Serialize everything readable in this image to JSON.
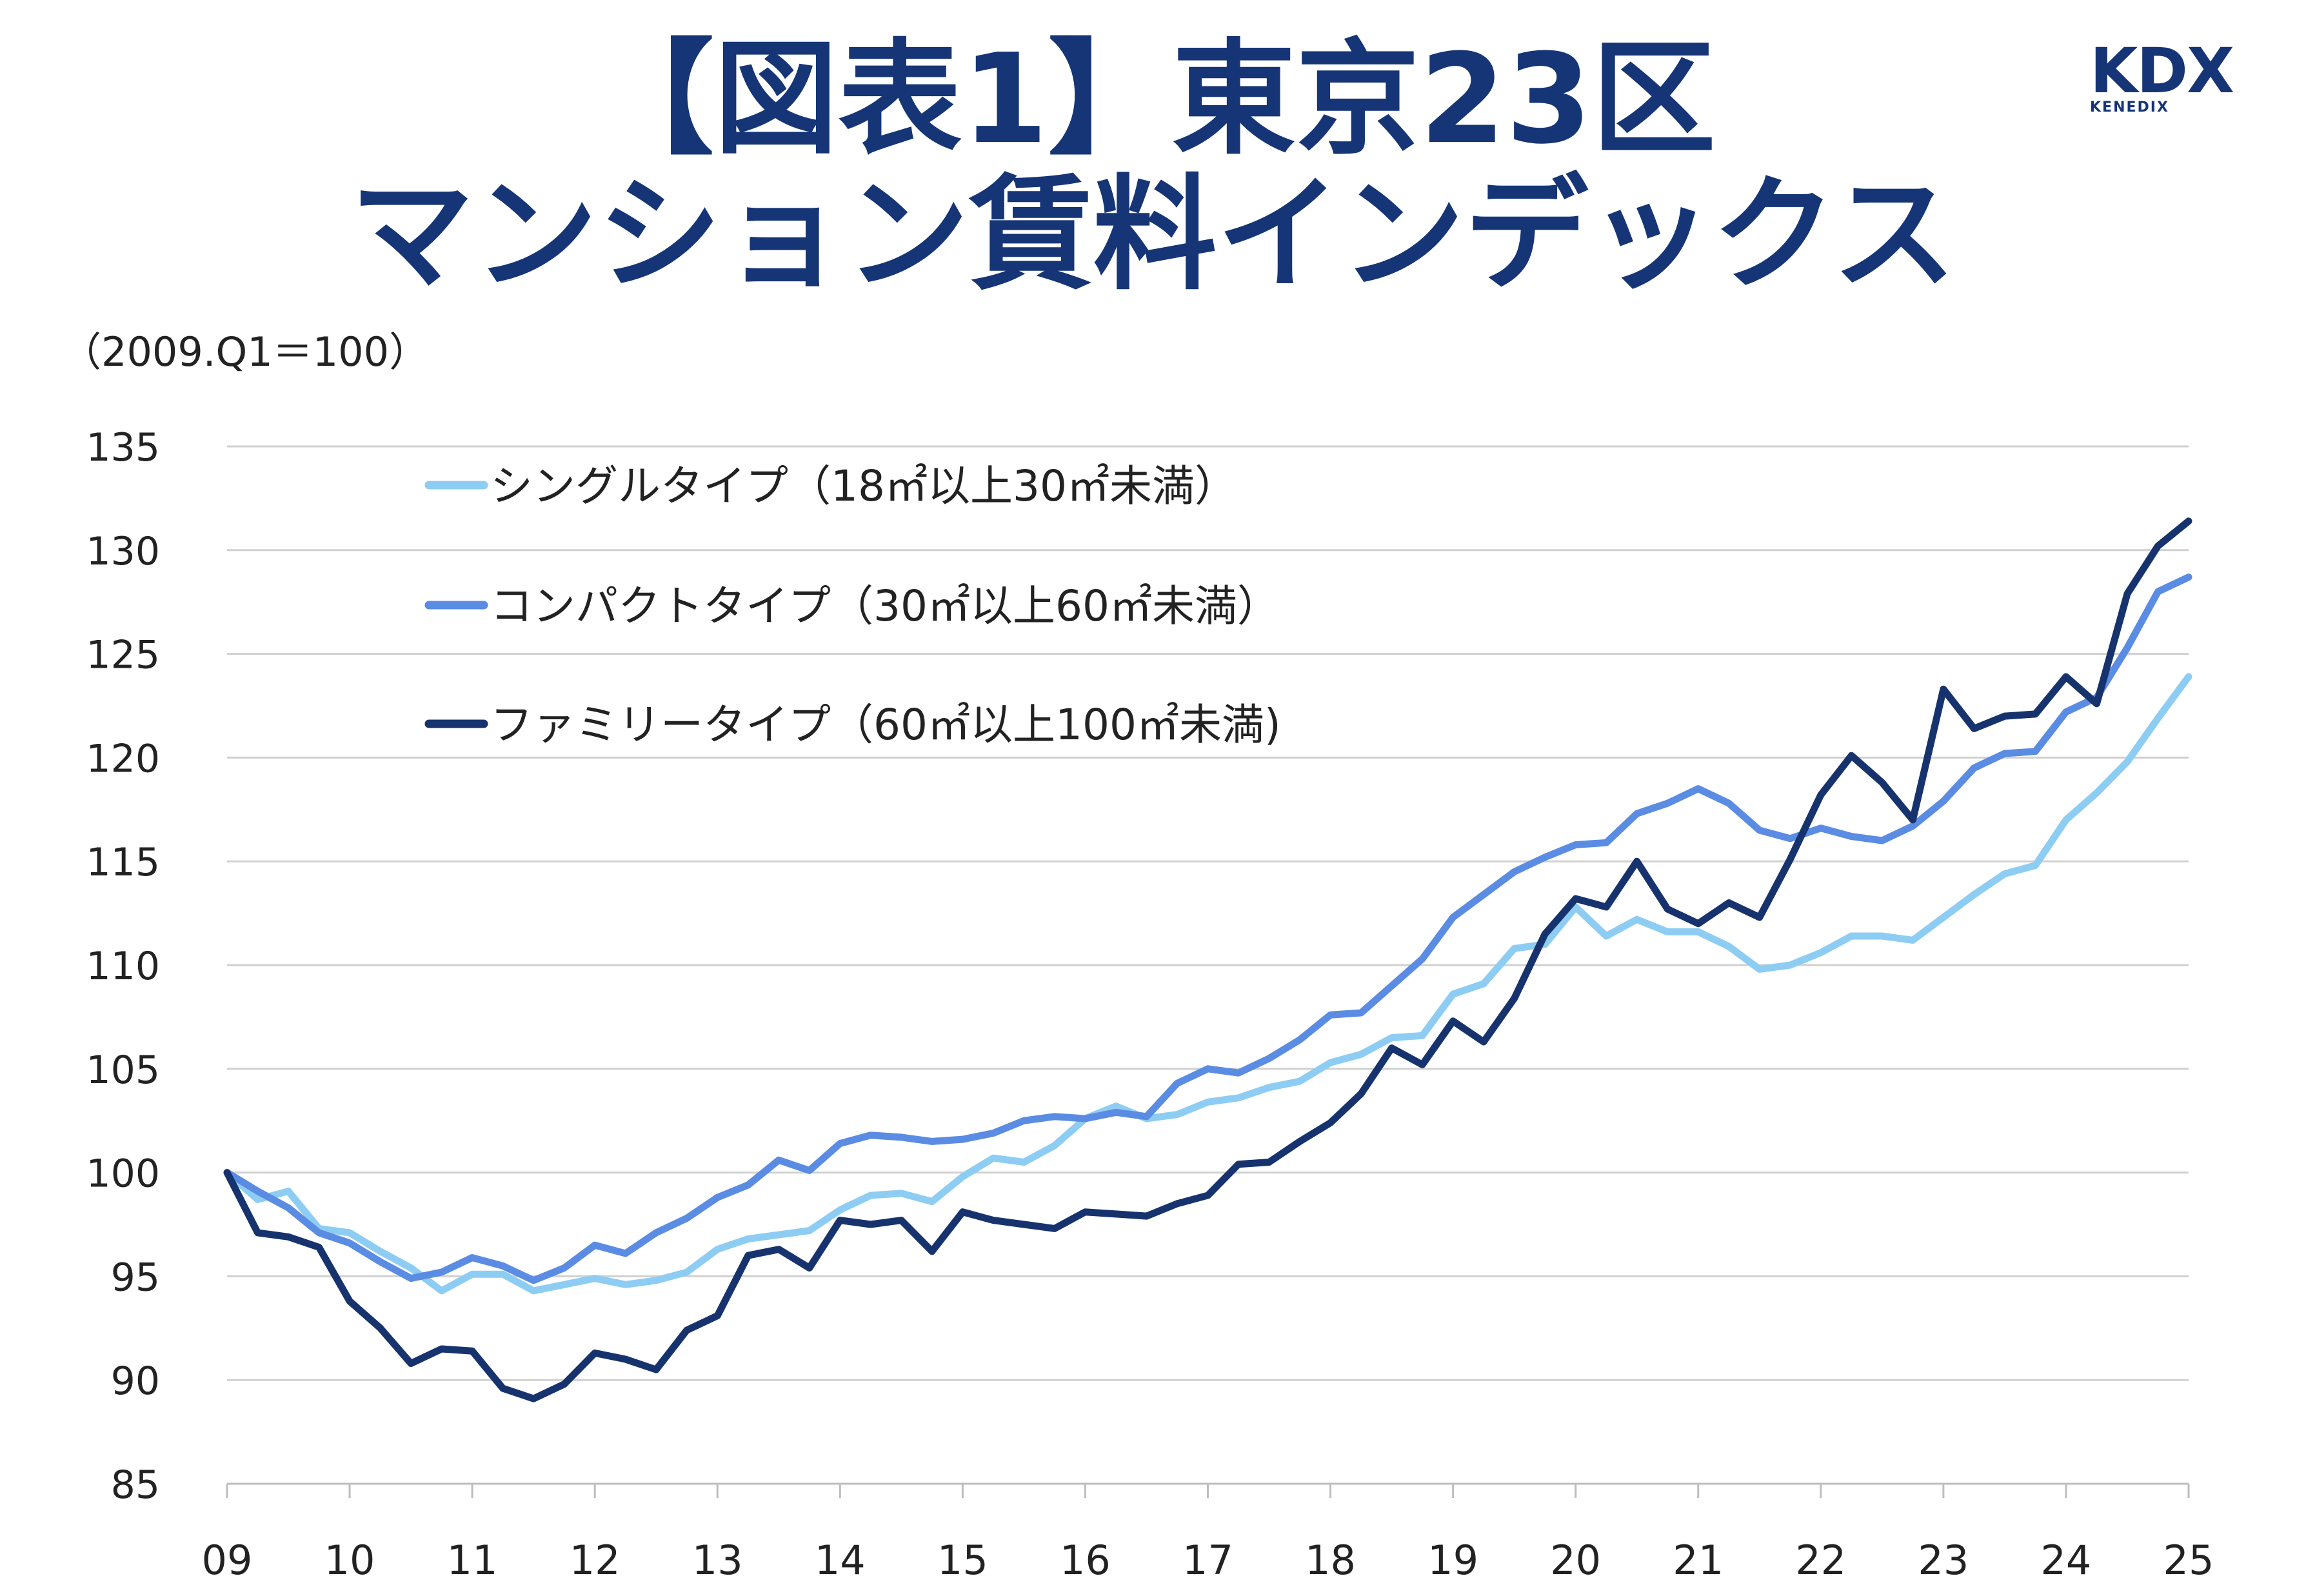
{
  "title": {
    "line1": "【図表1】東京23区",
    "line2": "マンション賃料インデックス"
  },
  "logo": {
    "main": "KDX",
    "sub": "KENEDIX"
  },
  "colors": {
    "title": "#163576",
    "single": "#8ecdf3",
    "compact": "#5b8ce3",
    "family": "#17336e",
    "grid": "#d0d0d0"
  },
  "chart_data": {
    "type": "line",
    "unit_label": "（2009.Q1＝100）",
    "ylim": [
      85,
      135
    ],
    "yticks": [
      "85",
      "90",
      "95",
      "100",
      "105",
      "110",
      "115",
      "120",
      "125",
      "130",
      "135"
    ],
    "xticks": [
      "09",
      "10",
      "11",
      "12",
      "13",
      "14",
      "15",
      "16",
      "17",
      "18",
      "19",
      "20",
      "21",
      "22",
      "23",
      "24",
      "25"
    ],
    "x_range": [
      0,
      64
    ],
    "legend_position": "top-left",
    "grid": true,
    "series": [
      {
        "name": "シングルタイプ（18㎡以上30㎡未満）",
        "color": "#8ecdf3",
        "values": [
          100.0,
          98.7,
          99.1,
          97.3,
          97.1,
          96.2,
          95.4,
          94.3,
          95.1,
          95.1,
          94.3,
          94.6,
          94.9,
          94.6,
          94.8,
          95.2,
          96.3,
          96.8,
          97.0,
          97.2,
          98.2,
          98.9,
          99.0,
          98.6,
          99.8,
          100.7,
          100.5,
          101.3,
          102.6,
          103.2,
          102.6,
          102.8,
          103.4,
          103.6,
          104.1,
          104.4,
          105.3,
          105.7,
          106.5,
          106.6,
          108.6,
          109.1,
          110.8,
          111.0,
          112.8,
          111.4,
          112.2,
          111.6,
          111.6,
          110.9,
          109.8,
          110.0,
          110.6,
          111.4,
          111.4,
          111.2,
          112.3,
          113.4,
          114.4,
          114.8,
          117.0,
          118.3,
          119.8,
          121.9,
          123.9
        ]
      },
      {
        "name": "コンパクトタイプ（30㎡以上60㎡未満）",
        "color": "#5b8ce3",
        "values": [
          100.0,
          99.1,
          98.3,
          97.1,
          96.6,
          95.7,
          94.9,
          95.2,
          95.9,
          95.5,
          94.8,
          95.4,
          96.5,
          96.1,
          97.1,
          97.8,
          98.8,
          99.4,
          100.6,
          100.1,
          101.4,
          101.8,
          101.7,
          101.5,
          101.6,
          101.9,
          102.5,
          102.7,
          102.6,
          102.9,
          102.7,
          104.3,
          105.0,
          104.8,
          105.5,
          106.4,
          107.6,
          107.7,
          109.0,
          110.3,
          112.3,
          113.4,
          114.5,
          115.2,
          115.8,
          115.9,
          117.3,
          117.8,
          118.5,
          117.8,
          116.5,
          116.1,
          116.6,
          116.2,
          116.0,
          116.7,
          117.9,
          119.5,
          120.2,
          120.3,
          122.2,
          122.9,
          125.3,
          128.0,
          128.7
        ]
      },
      {
        "name": "ファミリータイプ（60㎡以上100㎡未満)",
        "color": "#17336e",
        "values": [
          100.0,
          97.1,
          96.9,
          96.4,
          93.8,
          92.5,
          90.8,
          91.5,
          91.4,
          89.6,
          89.1,
          89.8,
          91.3,
          91.0,
          90.5,
          92.4,
          93.1,
          96.0,
          96.3,
          95.4,
          97.7,
          97.5,
          97.7,
          96.2,
          98.1,
          97.7,
          97.5,
          97.3,
          98.1,
          98.0,
          97.9,
          98.5,
          98.9,
          100.4,
          100.5,
          101.5,
          102.4,
          103.8,
          106.0,
          105.2,
          107.3,
          106.3,
          108.4,
          111.5,
          113.2,
          112.8,
          115.0,
          112.7,
          112.0,
          113.0,
          112.3,
          115.1,
          118.2,
          120.1,
          118.8,
          117.0,
          123.3,
          121.4,
          122.0,
          122.1,
          123.9,
          122.6,
          127.9,
          130.2,
          131.4
        ]
      }
    ]
  }
}
